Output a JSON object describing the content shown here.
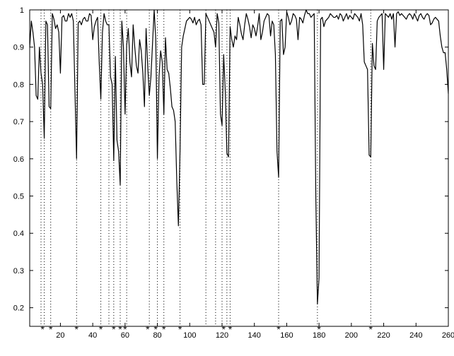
{
  "chart_data": {
    "type": "line",
    "title": "",
    "xlabel": "",
    "ylabel": "",
    "xlim": [
      1,
      260
    ],
    "ylim": [
      0.15,
      1.0
    ],
    "xticks": [
      20,
      40,
      60,
      80,
      100,
      120,
      140,
      160,
      180,
      200,
      220,
      240,
      260
    ],
    "xtick_labels": [
      "20",
      "40",
      "60",
      "80",
      "100",
      "120",
      "140",
      "160",
      "180",
      "200",
      "220",
      "240",
      "260"
    ],
    "yticks": [
      0.2,
      0.3,
      0.4,
      0.5,
      0.6,
      0.7,
      0.8,
      0.9,
      1.0
    ],
    "ytick_labels": [
      "0.2",
      "0.3",
      "0.4",
      "0.5",
      "0.6",
      "0.7",
      "0.8",
      "0.9",
      "1"
    ],
    "grid": false,
    "legend": "none",
    "colors": {
      "line": "#000000",
      "axes": "#000000",
      "markers": "#000000",
      "background": "#ffffff"
    },
    "vertical_markers": {
      "style": "dotted",
      "x": [
        8,
        10,
        14,
        30,
        45,
        50,
        53,
        57,
        61,
        75,
        80,
        84,
        94,
        110,
        116,
        120,
        123,
        125,
        155,
        179,
        212
      ]
    },
    "star_markers": {
      "symbol": "*",
      "x": [
        9,
        14,
        30,
        45,
        53,
        57,
        60,
        74,
        79,
        84,
        94,
        121,
        125,
        155,
        180,
        212
      ]
    },
    "series": [
      {
        "points": [
          [
            1,
            0.9
          ],
          [
            2,
            0.97
          ],
          [
            3,
            0.94
          ],
          [
            4,
            0.9
          ],
          [
            5,
            0.77
          ],
          [
            6,
            0.76
          ],
          [
            7,
            0.9
          ],
          [
            8,
            0.83
          ],
          [
            9,
            0.8
          ],
          [
            10,
            0.655
          ],
          [
            11,
            0.97
          ],
          [
            12,
            0.96
          ],
          [
            13,
            0.74
          ],
          [
            14,
            0.735
          ],
          [
            15,
            0.99
          ],
          [
            16,
            0.975
          ],
          [
            17,
            0.95
          ],
          [
            18,
            0.96
          ],
          [
            19,
            0.94
          ],
          [
            20,
            0.83
          ],
          [
            21,
            0.98
          ],
          [
            22,
            0.985
          ],
          [
            23,
            0.97
          ],
          [
            24,
            0.97
          ],
          [
            25,
            0.99
          ],
          [
            26,
            0.98
          ],
          [
            27,
            0.99
          ],
          [
            28,
            0.97
          ],
          [
            29,
            0.78
          ],
          [
            30,
            0.6
          ],
          [
            31,
            0.965
          ],
          [
            32,
            0.97
          ],
          [
            33,
            0.96
          ],
          [
            34,
            0.975
          ],
          [
            35,
            0.98
          ],
          [
            36,
            0.97
          ],
          [
            37,
            0.97
          ],
          [
            38,
            0.99
          ],
          [
            39,
            0.985
          ],
          [
            40,
            0.92
          ],
          [
            41,
            0.955
          ],
          [
            42,
            0.97
          ],
          [
            43,
            0.98
          ],
          [
            44,
            0.86
          ],
          [
            45,
            0.76
          ],
          [
            46,
            0.94
          ],
          [
            47,
            0.99
          ],
          [
            48,
            0.97
          ],
          [
            49,
            0.96
          ],
          [
            50,
            0.96
          ],
          [
            51,
            0.82
          ],
          [
            52,
            0.8
          ],
          [
            53,
            0.595
          ],
          [
            54,
            0.875
          ],
          [
            55,
            0.65
          ],
          [
            56,
            0.62
          ],
          [
            57,
            0.53
          ],
          [
            58,
            0.97
          ],
          [
            59,
            0.9
          ],
          [
            60,
            0.72
          ],
          [
            61,
            0.905
          ],
          [
            62,
            0.95
          ],
          [
            63,
            0.86
          ],
          [
            64,
            0.82
          ],
          [
            65,
            0.96
          ],
          [
            66,
            0.9
          ],
          [
            67,
            0.85
          ],
          [
            68,
            0.83
          ],
          [
            69,
            0.92
          ],
          [
            70,
            0.89
          ],
          [
            71,
            0.83
          ],
          [
            72,
            0.74
          ],
          [
            73,
            0.95
          ],
          [
            74,
            0.85
          ],
          [
            75,
            0.77
          ],
          [
            76,
            0.82
          ],
          [
            77,
            0.91
          ],
          [
            78,
            1.0
          ],
          [
            79,
            0.92
          ],
          [
            80,
            0.6
          ],
          [
            81,
            0.82
          ],
          [
            82,
            0.89
          ],
          [
            83,
            0.86
          ],
          [
            84,
            0.72
          ],
          [
            85,
            0.925
          ],
          [
            86,
            0.84
          ],
          [
            87,
            0.83
          ],
          [
            88,
            0.79
          ],
          [
            89,
            0.74
          ],
          [
            90,
            0.73
          ],
          [
            91,
            0.7
          ],
          [
            92,
            0.54
          ],
          [
            93,
            0.42
          ],
          [
            94,
            0.62
          ],
          [
            95,
            0.9
          ],
          [
            96,
            0.93
          ],
          [
            97,
            0.95
          ],
          [
            98,
            0.97
          ],
          [
            99,
            0.975
          ],
          [
            100,
            0.98
          ],
          [
            101,
            0.975
          ],
          [
            102,
            0.965
          ],
          [
            103,
            0.98
          ],
          [
            104,
            0.96
          ],
          [
            105,
            0.97
          ],
          [
            106,
            0.975
          ],
          [
            107,
            0.96
          ],
          [
            108,
            0.8
          ],
          [
            109,
            0.8
          ],
          [
            110,
            0.99
          ],
          [
            111,
            0.98
          ],
          [
            112,
            0.97
          ],
          [
            113,
            0.96
          ],
          [
            114,
            0.95
          ],
          [
            115,
            0.94
          ],
          [
            116,
            0.9
          ],
          [
            117,
            0.99
          ],
          [
            118,
            0.965
          ],
          [
            119,
            0.72
          ],
          [
            120,
            0.69
          ],
          [
            121,
            0.88
          ],
          [
            122,
            0.78
          ],
          [
            123,
            0.615
          ],
          [
            124,
            0.605
          ],
          [
            125,
            0.955
          ],
          [
            126,
            0.92
          ],
          [
            127,
            0.9
          ],
          [
            128,
            0.93
          ],
          [
            129,
            0.92
          ],
          [
            130,
            0.98
          ],
          [
            131,
            0.96
          ],
          [
            132,
            0.935
          ],
          [
            133,
            0.92
          ],
          [
            134,
            0.96
          ],
          [
            135,
            0.99
          ],
          [
            136,
            0.975
          ],
          [
            137,
            0.955
          ],
          [
            138,
            0.925
          ],
          [
            139,
            0.96
          ],
          [
            140,
            0.95
          ],
          [
            141,
            0.93
          ],
          [
            142,
            0.955
          ],
          [
            143,
            0.99
          ],
          [
            144,
            0.92
          ],
          [
            145,
            0.94
          ],
          [
            146,
            0.97
          ],
          [
            147,
            0.98
          ],
          [
            148,
            0.99
          ],
          [
            149,
            0.985
          ],
          [
            150,
            0.93
          ],
          [
            151,
            0.97
          ],
          [
            152,
            0.96
          ],
          [
            153,
            0.88
          ],
          [
            154,
            0.62
          ],
          [
            155,
            0.55
          ],
          [
            156,
            0.97
          ],
          [
            157,
            0.975
          ],
          [
            158,
            0.88
          ],
          [
            159,
            0.9
          ],
          [
            160,
            0.995
          ],
          [
            161,
            0.98
          ],
          [
            162,
            0.96
          ],
          [
            163,
            0.97
          ],
          [
            164,
            0.99
          ],
          [
            165,
            0.985
          ],
          [
            166,
            0.975
          ],
          [
            167,
            0.92
          ],
          [
            168,
            0.98
          ],
          [
            169,
            0.975
          ],
          [
            170,
            0.965
          ],
          [
            171,
            0.985
          ],
          [
            172,
            1.0
          ],
          [
            173,
            0.99
          ],
          [
            174,
            0.99
          ],
          [
            175,
            0.98
          ],
          [
            176,
            0.985
          ],
          [
            177,
            0.99
          ],
          [
            178,
            0.5
          ],
          [
            179,
            0.21
          ],
          [
            180,
            0.28
          ],
          [
            181,
            0.975
          ],
          [
            182,
            0.98
          ],
          [
            183,
            0.955
          ],
          [
            184,
            0.97
          ],
          [
            185,
            0.975
          ],
          [
            186,
            0.98
          ],
          [
            187,
            0.99
          ],
          [
            188,
            0.985
          ],
          [
            189,
            0.98
          ],
          [
            190,
            0.98
          ],
          [
            191,
            0.985
          ],
          [
            192,
            0.975
          ],
          [
            193,
            0.99
          ],
          [
            194,
            0.985
          ],
          [
            195,
            0.97
          ],
          [
            196,
            0.98
          ],
          [
            197,
            0.99
          ],
          [
            198,
            0.975
          ],
          [
            199,
            0.985
          ],
          [
            200,
            0.98
          ],
          [
            201,
            0.975
          ],
          [
            202,
            0.99
          ],
          [
            203,
            0.985
          ],
          [
            204,
            0.98
          ],
          [
            205,
            0.97
          ],
          [
            206,
            0.99
          ],
          [
            207,
            0.96
          ],
          [
            208,
            0.86
          ],
          [
            209,
            0.85
          ],
          [
            210,
            0.84
          ],
          [
            211,
            0.61
          ],
          [
            212,
            0.605
          ],
          [
            213,
            0.91
          ],
          [
            214,
            0.85
          ],
          [
            215,
            0.84
          ],
          [
            216,
            0.97
          ],
          [
            217,
            0.98
          ],
          [
            218,
            0.985
          ],
          [
            219,
            0.99
          ],
          [
            220,
            0.84
          ],
          [
            221,
            0.99
          ],
          [
            222,
            0.985
          ],
          [
            223,
            0.98
          ],
          [
            224,
            0.99
          ],
          [
            225,
            0.975
          ],
          [
            226,
            0.99
          ],
          [
            227,
            0.9
          ],
          [
            228,
            0.99
          ],
          [
            229,
            0.995
          ],
          [
            230,
            0.985
          ],
          [
            231,
            0.99
          ],
          [
            232,
            0.985
          ],
          [
            233,
            0.98
          ],
          [
            234,
            0.975
          ],
          [
            235,
            0.985
          ],
          [
            236,
            0.99
          ],
          [
            237,
            0.985
          ],
          [
            238,
            0.975
          ],
          [
            239,
            0.99
          ],
          [
            240,
            0.98
          ],
          [
            241,
            0.97
          ],
          [
            242,
            0.985
          ],
          [
            243,
            0.99
          ],
          [
            244,
            0.98
          ],
          [
            245,
            0.975
          ],
          [
            246,
            0.985
          ],
          [
            247,
            0.99
          ],
          [
            248,
            0.985
          ],
          [
            249,
            0.96
          ],
          [
            250,
            0.965
          ],
          [
            251,
            0.975
          ],
          [
            252,
            0.98
          ],
          [
            253,
            0.975
          ],
          [
            254,
            0.97
          ],
          [
            255,
            0.93
          ],
          [
            256,
            0.9
          ],
          [
            257,
            0.885
          ],
          [
            258,
            0.885
          ],
          [
            259,
            0.84
          ],
          [
            260,
            0.775
          ]
        ]
      }
    ]
  }
}
